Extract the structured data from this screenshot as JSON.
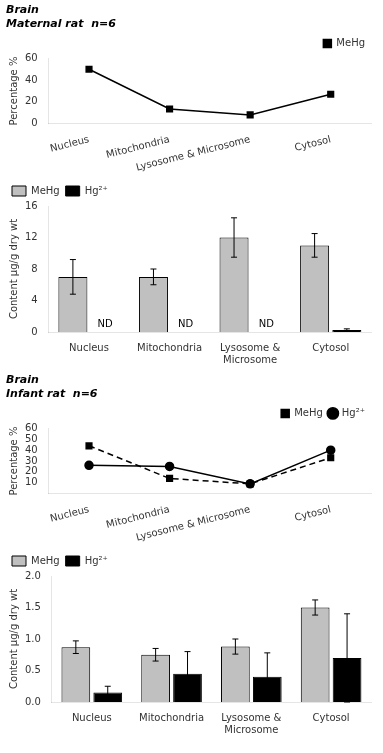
{
  "chart_data": [
    {
      "type": "line",
      "title": "Brain\nMaternal rat  n=6",
      "categories": [
        "Nucleus",
        "Mitochondria",
        "Lysosome & Microsome",
        "Cytosol"
      ],
      "series": [
        {
          "name": "MeHg",
          "color": "#000000",
          "values": [
            50,
            13.5,
            8,
            27
          ],
          "marker": "square",
          "line_style": "solid"
        }
      ],
      "y_label": "Percentage %",
      "ylim": [
        0,
        60
      ],
      "yticks": [
        0,
        20,
        40,
        60
      ],
      "grid": false,
      "legend": "upper right"
    },
    {
      "type": "bar",
      "categories": [
        "Nucleus",
        "Mitochondria",
        "Lysosome &\nMicrosome",
        "Cytosol"
      ],
      "series": [
        {
          "name": "MeHg",
          "color": "#c0c0c0",
          "values": [
            7.0,
            7.0,
            12.0,
            11.0
          ],
          "errors": [
            2.2,
            1.0,
            2.5,
            1.5
          ]
        },
        {
          "name": "Hg²⁺",
          "color": "#000000",
          "values": [
            0,
            0,
            0,
            0.25
          ],
          "errors": [
            0,
            0,
            0,
            0.15
          ]
        }
      ],
      "annotations": [
        {
          "text": "ND",
          "category": "Nucleus",
          "series": "Hg²⁺"
        },
        {
          "text": "ND",
          "category": "Mitochondria",
          "series": "Hg²⁺"
        },
        {
          "text": "ND",
          "category": "Lysosome &\nMicrosome",
          "series": "Hg²⁺"
        }
      ],
      "y_label": "Content μg/g dry wt",
      "ylim": [
        0,
        16
      ],
      "yticks": [
        0,
        4,
        8,
        12,
        16
      ],
      "grid": false,
      "legend": "upper left"
    },
    {
      "type": "line",
      "title": "Brain\nInfant rat  n=6",
      "categories": [
        "Nucleus",
        "Mitochondria",
        "Lysosome & Microsome",
        "Cytosol"
      ],
      "series": [
        {
          "name": "MeHg",
          "color": "#000000",
          "values": [
            44,
            14,
            9,
            33
          ],
          "marker": "square",
          "line_style": "dashed"
        },
        {
          "name": "Hg²⁺",
          "color": "#000000",
          "values": [
            26,
            25,
            9,
            40
          ],
          "marker": "circle",
          "line_style": "solid"
        }
      ],
      "y_label": "Percentage %",
      "ylim": [
        0,
        60
      ],
      "yticks": [
        10,
        20,
        30,
        40,
        50,
        60
      ],
      "grid": false,
      "legend": "upper right"
    },
    {
      "type": "bar",
      "categories": [
        "Nucleus",
        "Mitochondria",
        "Lysosome &\nMicrosome",
        "Cytosol"
      ],
      "series": [
        {
          "name": "MeHg",
          "color": "#c0c0c0",
          "values": [
            0.87,
            0.75,
            0.88,
            1.5
          ],
          "errors": [
            0.1,
            0.1,
            0.12,
            0.12
          ]
        },
        {
          "name": "Hg²⁺",
          "color": "#000000",
          "values": [
            0.15,
            0.45,
            0.4,
            0.7
          ],
          "errors": [
            0.1,
            0.35,
            0.38,
            0.7
          ]
        }
      ],
      "y_label": "Content μg/g dry wt",
      "ylim": [
        0,
        2.0
      ],
      "yticks": [
        {
          "value": 0,
          "label": "0.0"
        },
        0.5,
        {
          "value": 1.0,
          "label": "1.0"
        },
        1.5,
        {
          "value": 2.0,
          "label": "2.0"
        }
      ],
      "grid": false,
      "legend": "upper left"
    }
  ]
}
